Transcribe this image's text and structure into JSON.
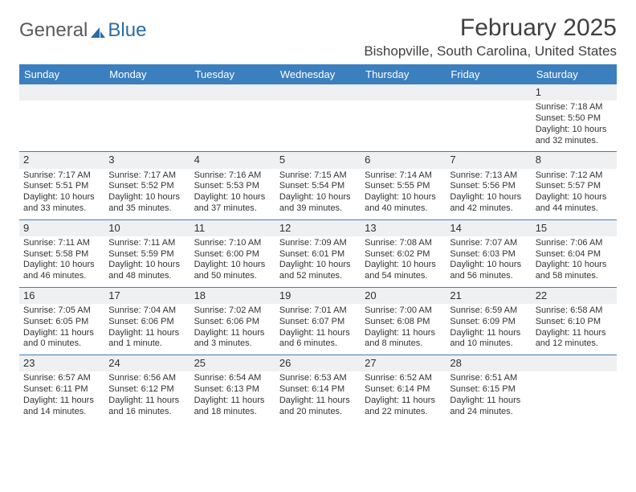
{
  "brand": {
    "text1": "General",
    "text2": "Blue"
  },
  "title": "February 2025",
  "location": "Bishopville, South Carolina, United States",
  "colors": {
    "header_bg": "#3b7fbf",
    "header_text": "#ffffff",
    "rule": "#3b7fbf",
    "daynum_bg": "#eef0f2",
    "body_text": "#333333",
    "title_text": "#404040",
    "logo_gray": "#5a5a5a",
    "logo_blue": "#2b6ca3",
    "blank_row_bg": "#f0f0f0"
  },
  "day_names": [
    "Sunday",
    "Monday",
    "Tuesday",
    "Wednesday",
    "Thursday",
    "Friday",
    "Saturday"
  ],
  "weeks": [
    [
      null,
      null,
      null,
      null,
      null,
      null,
      {
        "n": "1",
        "sunrise": "Sunrise: 7:18 AM",
        "sunset": "Sunset: 5:50 PM",
        "day1": "Daylight: 10 hours",
        "day2": "and 32 minutes."
      }
    ],
    [
      {
        "n": "2",
        "sunrise": "Sunrise: 7:17 AM",
        "sunset": "Sunset: 5:51 PM",
        "day1": "Daylight: 10 hours",
        "day2": "and 33 minutes."
      },
      {
        "n": "3",
        "sunrise": "Sunrise: 7:17 AM",
        "sunset": "Sunset: 5:52 PM",
        "day1": "Daylight: 10 hours",
        "day2": "and 35 minutes."
      },
      {
        "n": "4",
        "sunrise": "Sunrise: 7:16 AM",
        "sunset": "Sunset: 5:53 PM",
        "day1": "Daylight: 10 hours",
        "day2": "and 37 minutes."
      },
      {
        "n": "5",
        "sunrise": "Sunrise: 7:15 AM",
        "sunset": "Sunset: 5:54 PM",
        "day1": "Daylight: 10 hours",
        "day2": "and 39 minutes."
      },
      {
        "n": "6",
        "sunrise": "Sunrise: 7:14 AM",
        "sunset": "Sunset: 5:55 PM",
        "day1": "Daylight: 10 hours",
        "day2": "and 40 minutes."
      },
      {
        "n": "7",
        "sunrise": "Sunrise: 7:13 AM",
        "sunset": "Sunset: 5:56 PM",
        "day1": "Daylight: 10 hours",
        "day2": "and 42 minutes."
      },
      {
        "n": "8",
        "sunrise": "Sunrise: 7:12 AM",
        "sunset": "Sunset: 5:57 PM",
        "day1": "Daylight: 10 hours",
        "day2": "and 44 minutes."
      }
    ],
    [
      {
        "n": "9",
        "sunrise": "Sunrise: 7:11 AM",
        "sunset": "Sunset: 5:58 PM",
        "day1": "Daylight: 10 hours",
        "day2": "and 46 minutes."
      },
      {
        "n": "10",
        "sunrise": "Sunrise: 7:11 AM",
        "sunset": "Sunset: 5:59 PM",
        "day1": "Daylight: 10 hours",
        "day2": "and 48 minutes."
      },
      {
        "n": "11",
        "sunrise": "Sunrise: 7:10 AM",
        "sunset": "Sunset: 6:00 PM",
        "day1": "Daylight: 10 hours",
        "day2": "and 50 minutes."
      },
      {
        "n": "12",
        "sunrise": "Sunrise: 7:09 AM",
        "sunset": "Sunset: 6:01 PM",
        "day1": "Daylight: 10 hours",
        "day2": "and 52 minutes."
      },
      {
        "n": "13",
        "sunrise": "Sunrise: 7:08 AM",
        "sunset": "Sunset: 6:02 PM",
        "day1": "Daylight: 10 hours",
        "day2": "and 54 minutes."
      },
      {
        "n": "14",
        "sunrise": "Sunrise: 7:07 AM",
        "sunset": "Sunset: 6:03 PM",
        "day1": "Daylight: 10 hours",
        "day2": "and 56 minutes."
      },
      {
        "n": "15",
        "sunrise": "Sunrise: 7:06 AM",
        "sunset": "Sunset: 6:04 PM",
        "day1": "Daylight: 10 hours",
        "day2": "and 58 minutes."
      }
    ],
    [
      {
        "n": "16",
        "sunrise": "Sunrise: 7:05 AM",
        "sunset": "Sunset: 6:05 PM",
        "day1": "Daylight: 11 hours",
        "day2": "and 0 minutes."
      },
      {
        "n": "17",
        "sunrise": "Sunrise: 7:04 AM",
        "sunset": "Sunset: 6:06 PM",
        "day1": "Daylight: 11 hours",
        "day2": "and 1 minute."
      },
      {
        "n": "18",
        "sunrise": "Sunrise: 7:02 AM",
        "sunset": "Sunset: 6:06 PM",
        "day1": "Daylight: 11 hours",
        "day2": "and 3 minutes."
      },
      {
        "n": "19",
        "sunrise": "Sunrise: 7:01 AM",
        "sunset": "Sunset: 6:07 PM",
        "day1": "Daylight: 11 hours",
        "day2": "and 6 minutes."
      },
      {
        "n": "20",
        "sunrise": "Sunrise: 7:00 AM",
        "sunset": "Sunset: 6:08 PM",
        "day1": "Daylight: 11 hours",
        "day2": "and 8 minutes."
      },
      {
        "n": "21",
        "sunrise": "Sunrise: 6:59 AM",
        "sunset": "Sunset: 6:09 PM",
        "day1": "Daylight: 11 hours",
        "day2": "and 10 minutes."
      },
      {
        "n": "22",
        "sunrise": "Sunrise: 6:58 AM",
        "sunset": "Sunset: 6:10 PM",
        "day1": "Daylight: 11 hours",
        "day2": "and 12 minutes."
      }
    ],
    [
      {
        "n": "23",
        "sunrise": "Sunrise: 6:57 AM",
        "sunset": "Sunset: 6:11 PM",
        "day1": "Daylight: 11 hours",
        "day2": "and 14 minutes."
      },
      {
        "n": "24",
        "sunrise": "Sunrise: 6:56 AM",
        "sunset": "Sunset: 6:12 PM",
        "day1": "Daylight: 11 hours",
        "day2": "and 16 minutes."
      },
      {
        "n": "25",
        "sunrise": "Sunrise: 6:54 AM",
        "sunset": "Sunset: 6:13 PM",
        "day1": "Daylight: 11 hours",
        "day2": "and 18 minutes."
      },
      {
        "n": "26",
        "sunrise": "Sunrise: 6:53 AM",
        "sunset": "Sunset: 6:14 PM",
        "day1": "Daylight: 11 hours",
        "day2": "and 20 minutes."
      },
      {
        "n": "27",
        "sunrise": "Sunrise: 6:52 AM",
        "sunset": "Sunset: 6:14 PM",
        "day1": "Daylight: 11 hours",
        "day2": "and 22 minutes."
      },
      {
        "n": "28",
        "sunrise": "Sunrise: 6:51 AM",
        "sunset": "Sunset: 6:15 PM",
        "day1": "Daylight: 11 hours",
        "day2": "and 24 minutes."
      },
      null
    ]
  ]
}
